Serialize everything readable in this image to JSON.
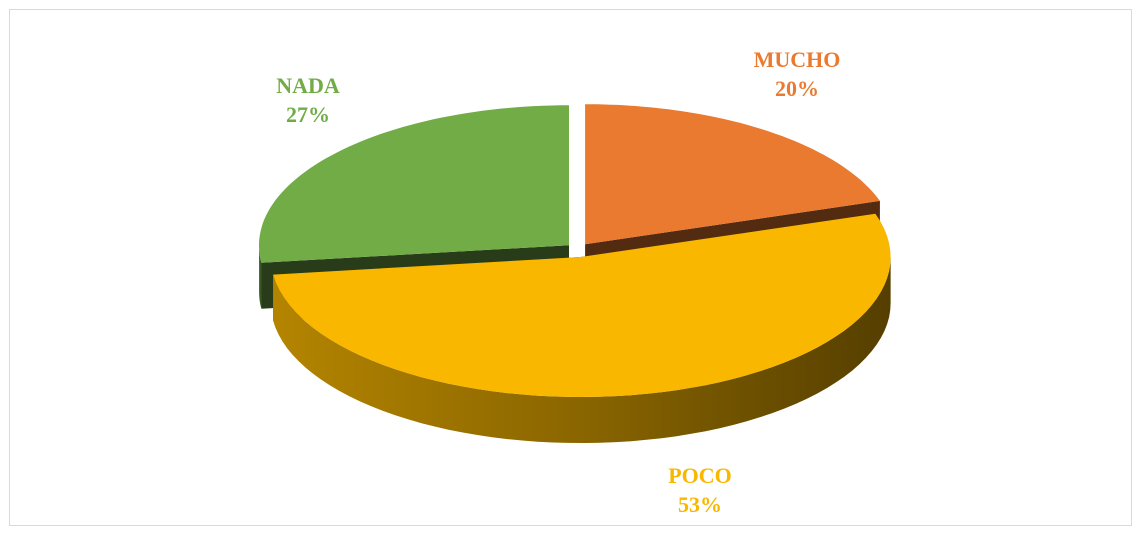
{
  "chart_data": {
    "type": "pie3d",
    "categories": [
      "MUCHO",
      "POCO",
      "NADA"
    ],
    "values": [
      20,
      53,
      27
    ],
    "value_labels": [
      "20%",
      "53%",
      "27%"
    ],
    "colors": [
      "#E97A2F",
      "#F9B700",
      "#71AC47"
    ]
  }
}
